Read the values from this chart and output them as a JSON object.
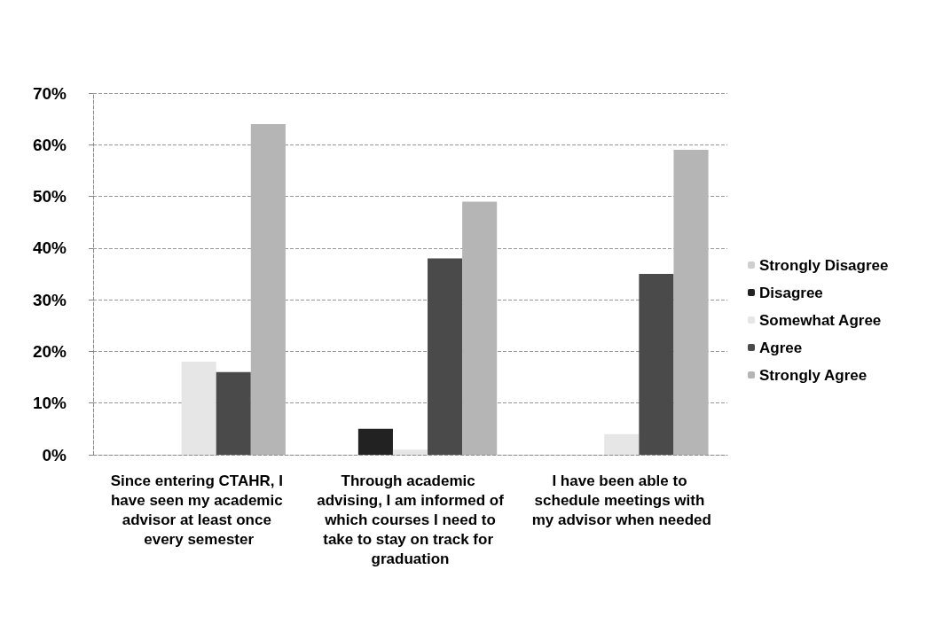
{
  "chart_data": {
    "type": "bar",
    "categories": [
      "Since entering CTAHR, I have seen my academic advisor at least once every semester",
      "Through academic advising, I am informed of which courses I need to take to stay on track for graduation",
      "I have been able to schedule meetings with my advisor when needed"
    ],
    "series": [
      {
        "name": "Strongly Disagree",
        "color": "#cfcfcf",
        "values": [
          0,
          0,
          0
        ]
      },
      {
        "name": "Disagree",
        "color": "#222222",
        "values": [
          0,
          5,
          0
        ]
      },
      {
        "name": "Somewhat Agree",
        "color": "#e6e6e6",
        "values": [
          18,
          1,
          4
        ]
      },
      {
        "name": "Agree",
        "color": "#4a4a4a",
        "values": [
          16,
          38,
          35
        ]
      },
      {
        "name": "Strongly Agree",
        "color": "#b5b5b5",
        "values": [
          64,
          49,
          59
        ]
      }
    ],
    "ylim": [
      0,
      70
    ],
    "yticks": [
      {
        "value": 0,
        "label": "0%"
      },
      {
        "value": 10,
        "label": "10%"
      },
      {
        "value": 20,
        "label": "20%"
      },
      {
        "value": 30,
        "label": "30%"
      },
      {
        "value": 40,
        "label": "40%"
      },
      {
        "value": 50,
        "label": "50%"
      },
      {
        "value": 60,
        "label": "60%"
      },
      {
        "value": 70,
        "label": "70%"
      }
    ],
    "grid": "y",
    "legend": "right"
  }
}
